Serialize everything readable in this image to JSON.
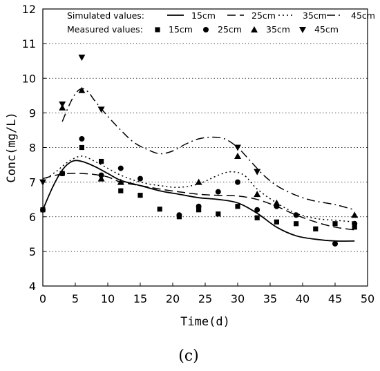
{
  "chart_data": {
    "type": "line",
    "xlabel": "Time(d)",
    "ylabel": "Conc(mg/L)",
    "caption": "(c)",
    "xlim": [
      0,
      50
    ],
    "ylim": [
      4,
      12
    ],
    "x_ticks": [
      0,
      5,
      10,
      15,
      20,
      25,
      30,
      35,
      40,
      45,
      50
    ],
    "y_ticks": [
      4,
      5,
      6,
      7,
      8,
      9,
      10,
      11,
      12
    ],
    "grid": "horizontal dotted",
    "legend": {
      "placement": "top-left, inside plot",
      "simulated_label": "Simulated values:",
      "measured_label": "Measured values:",
      "names": [
        "15cm",
        "25cm",
        "35cm",
        "45cm"
      ]
    },
    "simulated": [
      {
        "name": "15cm",
        "dash": "solid",
        "x": [
          0,
          1.5,
          3,
          4.5,
          6,
          8,
          10,
          12,
          15,
          18,
          21,
          24,
          27,
          30,
          33,
          36,
          39,
          42,
          45,
          48
        ],
        "y": [
          6.2,
          6.85,
          7.35,
          7.6,
          7.6,
          7.45,
          7.25,
          7.05,
          6.9,
          6.75,
          6.65,
          6.55,
          6.5,
          6.4,
          6.1,
          5.7,
          5.45,
          5.35,
          5.3,
          5.3
        ]
      },
      {
        "name": "25cm",
        "dash": "long-dash",
        "x": [
          0,
          2,
          4,
          6,
          8,
          10,
          12,
          15,
          18,
          21,
          24,
          27,
          30,
          33,
          36,
          39,
          42,
          45,
          48
        ],
        "y": [
          7.1,
          7.2,
          7.25,
          7.25,
          7.22,
          7.15,
          7.0,
          6.9,
          6.8,
          6.72,
          6.65,
          6.62,
          6.6,
          6.5,
          6.3,
          6.05,
          5.85,
          5.7,
          5.62
        ]
      },
      {
        "name": "35cm",
        "dash": "dotted",
        "x": [
          0,
          2,
          4,
          6,
          8,
          10,
          12,
          15,
          18,
          21,
          24,
          27,
          29,
          31,
          33,
          36,
          39,
          42,
          45,
          48
        ],
        "y": [
          7.05,
          7.3,
          7.6,
          7.75,
          7.6,
          7.4,
          7.2,
          7.0,
          6.9,
          6.85,
          6.95,
          7.2,
          7.3,
          7.2,
          6.8,
          6.4,
          6.1,
          5.95,
          5.9,
          5.85
        ]
      },
      {
        "name": "45cm",
        "dash": "dash-dot",
        "x": [
          3,
          4,
          5,
          6,
          7,
          8,
          10,
          12,
          14,
          16,
          18,
          20,
          22,
          24,
          26,
          28,
          30,
          32,
          34,
          36,
          38,
          40,
          42,
          45,
          48
        ],
        "y": [
          8.75,
          9.2,
          9.55,
          9.7,
          9.6,
          9.35,
          8.9,
          8.5,
          8.15,
          7.95,
          7.82,
          7.9,
          8.1,
          8.25,
          8.3,
          8.25,
          8.0,
          7.6,
          7.2,
          6.9,
          6.7,
          6.55,
          6.45,
          6.35,
          6.2
        ]
      }
    ],
    "measured": [
      {
        "name": "15cm",
        "marker": "square",
        "x": [
          0,
          3,
          6,
          9,
          12,
          15,
          18,
          21,
          24,
          27,
          30,
          33,
          36,
          39,
          42,
          45,
          48
        ],
        "y": [
          6.2,
          7.25,
          8.0,
          7.6,
          6.75,
          6.62,
          6.22,
          6.0,
          6.2,
          6.08,
          6.3,
          5.97,
          5.85,
          5.8,
          5.65,
          5.8,
          5.7
        ]
      },
      {
        "name": "25cm",
        "marker": "circle",
        "x": [
          0,
          3,
          6,
          9,
          12,
          15,
          21,
          24,
          27,
          30,
          33,
          36,
          39,
          45,
          48
        ],
        "y": [
          6.2,
          7.25,
          8.25,
          7.2,
          7.4,
          7.1,
          6.05,
          6.3,
          6.72,
          7.0,
          6.2,
          6.3,
          6.05,
          5.22,
          5.8
        ]
      },
      {
        "name": "35cm",
        "marker": "triangle-up",
        "x": [
          3,
          6,
          9,
          12,
          24,
          30,
          33,
          36,
          48
        ],
        "y": [
          9.15,
          9.65,
          7.1,
          7.0,
          7.0,
          7.75,
          6.65,
          6.4,
          6.05
        ]
      },
      {
        "name": "45cm",
        "marker": "triangle-down",
        "x": [
          0,
          3,
          6,
          9,
          30,
          33
        ],
        "y": [
          7.0,
          9.25,
          10.6,
          9.1,
          8.0,
          7.3
        ]
      }
    ]
  }
}
